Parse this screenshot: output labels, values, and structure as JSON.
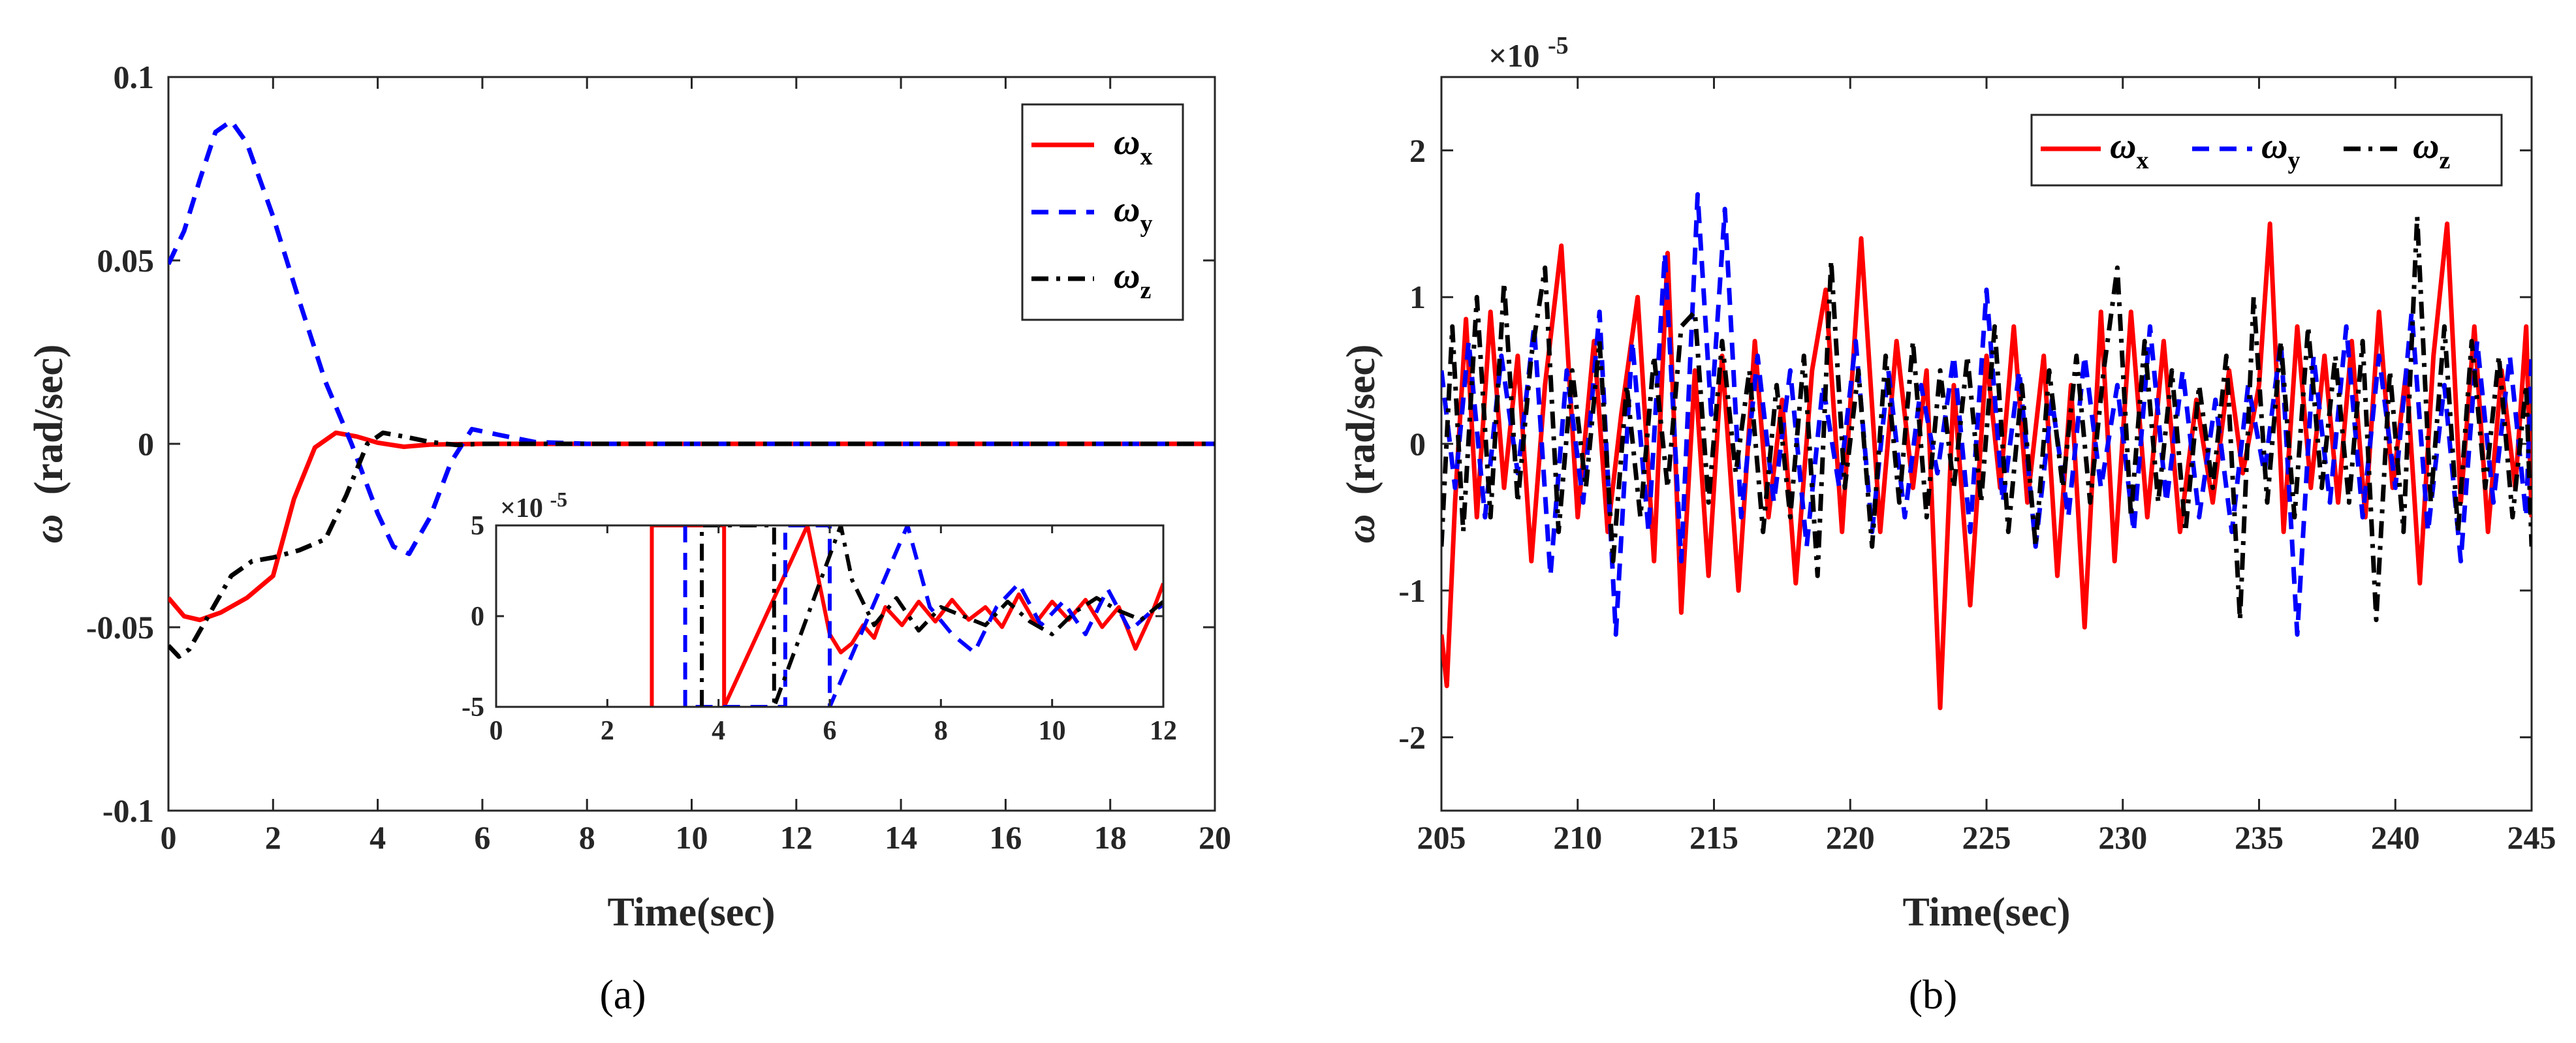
{
  "chart_data": [
    {
      "type": "line",
      "panel_caption": "(a)",
      "xlabel": "Time(sec)",
      "ylabel_symbol": "ω",
      "ylabel_unit": "(rad/sec)",
      "xlim": [
        0,
        20
      ],
      "ylim": [
        -0.1,
        0.1
      ],
      "xticks": [
        0,
        2,
        4,
        6,
        8,
        10,
        12,
        14,
        16,
        18,
        20
      ],
      "xtick_labels": [
        "0",
        "2",
        "4",
        "6",
        "8",
        "10",
        "12",
        "14",
        "16",
        "18",
        "20"
      ],
      "yticks": [
        -0.1,
        -0.05,
        0,
        0.05,
        0.1
      ],
      "ytick_labels": [
        "-0.1",
        "-0.05",
        "0",
        "0.05",
        "0.1"
      ],
      "legend_position": "top-right",
      "series": [
        {
          "name": "ωx",
          "symbol": "ω",
          "sub": "x",
          "color": "#ff0000",
          "style": "solid",
          "x": [
            0,
            0.3,
            0.6,
            1.0,
            1.5,
            2.0,
            2.4,
            2.8,
            3.2,
            3.6,
            4.0,
            4.5,
            5.0,
            6.0,
            8.0,
            12.0,
            20.0
          ],
          "y": [
            -0.042,
            -0.047,
            -0.048,
            -0.046,
            -0.042,
            -0.036,
            -0.015,
            -0.001,
            0.003,
            0.002,
            0.0003,
            -0.0008,
            -0.0002,
            0,
            0,
            0,
            0
          ]
        },
        {
          "name": "ωy",
          "symbol": "ω",
          "sub": "y",
          "color": "#0000ff",
          "style": "dashed",
          "x": [
            0,
            0.3,
            0.6,
            0.9,
            1.2,
            1.5,
            2.0,
            2.5,
            3.0,
            3.5,
            4.0,
            4.3,
            4.6,
            5.0,
            5.4,
            5.8,
            6.3,
            7.0,
            8.0,
            20.0
          ],
          "y": [
            0.049,
            0.058,
            0.072,
            0.085,
            0.088,
            0.082,
            0.062,
            0.039,
            0.017,
            0.0,
            -0.019,
            -0.028,
            -0.03,
            -0.02,
            -0.005,
            0.004,
            0.0025,
            0.0005,
            0,
            0
          ]
        },
        {
          "name": "ωz",
          "symbol": "ω",
          "sub": "z",
          "color": "#000000",
          "style": "dashdot",
          "x": [
            0,
            0.2,
            0.4,
            0.8,
            1.2,
            1.6,
            2.0,
            2.5,
            3.0,
            3.4,
            3.8,
            4.1,
            4.5,
            5.0,
            5.5,
            6.0,
            7.0,
            20.0
          ],
          "y": [
            -0.055,
            -0.058,
            -0.056,
            -0.046,
            -0.036,
            -0.032,
            -0.031,
            -0.029,
            -0.026,
            -0.014,
            0.0,
            0.003,
            0.002,
            0.0005,
            -0.0003,
            0,
            0,
            0
          ]
        }
      ],
      "inset": {
        "multiplier": "×10",
        "multiplier_exp": "-5",
        "xlim": [
          0,
          12
        ],
        "ylim": [
          -5,
          5
        ],
        "xticks": [
          0,
          2,
          4,
          6,
          8,
          10,
          12
        ],
        "xtick_labels": [
          "0",
          "2",
          "4",
          "6",
          "8",
          "10",
          "12"
        ],
        "yticks": [
          -5,
          0,
          5
        ],
        "ytick_labels": [
          "-5",
          "0",
          "5"
        ],
        "series": [
          {
            "color": "#ff0000",
            "style": "solid",
            "x": [
              2.8,
              2.8,
              4.1,
              4.1,
              5.6,
              5.8,
              6.0,
              6.2,
              6.4,
              6.6,
              6.8,
              7.0,
              7.3,
              7.6,
              7.9,
              8.2,
              8.5,
              8.8,
              9.1,
              9.4,
              9.7,
              10.0,
              10.3,
              10.6,
              10.9,
              11.2,
              11.5,
              11.8,
              12.0
            ],
            "y": [
              -5,
              5,
              5,
              -5,
              5,
              2.0,
              -1.0,
              -2.0,
              -1.5,
              -0.5,
              -1.2,
              0.5,
              -0.5,
              0.8,
              -0.3,
              0.9,
              -0.2,
              0.5,
              -0.6,
              1.2,
              -0.4,
              0.8,
              -0.2,
              0.9,
              -0.6,
              0.5,
              -1.8,
              0.2,
              1.8
            ]
          },
          {
            "color": "#0000ff",
            "style": "dashed",
            "x": [
              3.4,
              3.4,
              5.2,
              5.2,
              6.0,
              6.0,
              7.4,
              7.8,
              8.2,
              8.6,
              9.0,
              9.4,
              9.8,
              10.2,
              10.6,
              11.0,
              11.4,
              11.8,
              12.0
            ],
            "y": [
              5,
              -5,
              -5,
              5,
              5,
              -5,
              5,
              0.5,
              -1.0,
              -2.0,
              0.5,
              1.8,
              -0.5,
              0.8,
              -1.0,
              1.5,
              -0.8,
              0.3,
              0.6
            ]
          },
          {
            "color": "#000000",
            "style": "dashdot",
            "x": [
              3.7,
              3.7,
              5.0,
              5.0,
              6.2,
              6.4,
              6.8,
              7.2,
              7.6,
              8.0,
              8.4,
              8.8,
              9.2,
              9.6,
              10.0,
              10.4,
              10.8,
              11.2,
              11.6,
              12.0
            ],
            "y": [
              -5,
              5,
              5,
              -5,
              5,
              2.0,
              -0.5,
              1.0,
              -0.8,
              0.5,
              0.0,
              -0.5,
              0.8,
              -0.3,
              -1.0,
              0.2,
              1.0,
              0.3,
              -0.2,
              0.8
            ]
          }
        ]
      }
    },
    {
      "type": "line",
      "panel_caption": "(b)",
      "xlabel": "Time(sec)",
      "ylabel_symbol": "ω",
      "ylabel_unit": "(rad/sec)",
      "multiplier": "×10",
      "multiplier_exp": "-5",
      "xlim": [
        205,
        245
      ],
      "ylim": [
        -2.5,
        2.5
      ],
      "xticks": [
        205,
        210,
        215,
        220,
        225,
        230,
        235,
        240,
        245
      ],
      "xtick_labels": [
        "205",
        "210",
        "215",
        "220",
        "225",
        "230",
        "235",
        "240",
        "245"
      ],
      "yticks": [
        -2,
        -1,
        0,
        1,
        2
      ],
      "ytick_labels": [
        "-2",
        "-1",
        "0",
        "1",
        "2"
      ],
      "legend_position": "top-right",
      "series": [
        {
          "name": "ωx",
          "symbol": "ω",
          "sub": "x",
          "color": "#ff0000",
          "style": "solid",
          "x": [
            205,
            205.2,
            205.5,
            205.9,
            206.3,
            206.8,
            207.3,
            207.8,
            208.3,
            208.8,
            209.4,
            210.0,
            210.6,
            211.1,
            211.6,
            212.2,
            212.8,
            213.3,
            213.8,
            214.3,
            214.8,
            215.3,
            215.9,
            216.5,
            217.0,
            217.5,
            218.0,
            218.6,
            219.1,
            219.7,
            220.4,
            221.1,
            221.7,
            222.3,
            222.8,
            223.3,
            223.8,
            224.4,
            225.0,
            225.5,
            226.0,
            226.5,
            227.1,
            227.6,
            228.1,
            228.6,
            229.2,
            229.7,
            230.3,
            230.9,
            231.5,
            232.1,
            232.7,
            233.3,
            233.9,
            234.4,
            235.0,
            235.4,
            235.9,
            236.4,
            236.9,
            237.4,
            237.9,
            238.4,
            238.9,
            239.4,
            239.9,
            240.4,
            240.9,
            241.4,
            241.9,
            242.4,
            242.9,
            243.4,
            243.9,
            244.4,
            244.8,
            245.0
          ],
          "y": [
            -1.3,
            -1.65,
            -0.4,
            0.85,
            -0.5,
            0.9,
            -0.3,
            0.6,
            -0.8,
            0.4,
            1.35,
            -0.5,
            0.7,
            -0.6,
            0.2,
            1.0,
            -0.8,
            1.3,
            -1.15,
            0.5,
            -0.9,
            0.6,
            -1.0,
            0.7,
            -0.5,
            0.3,
            -0.95,
            0.5,
            1.05,
            -0.6,
            1.4,
            -0.6,
            0.7,
            -0.3,
            0.5,
            -1.8,
            0.4,
            -1.1,
            0.6,
            -0.3,
            0.8,
            -0.4,
            0.6,
            -0.9,
            0.4,
            -1.25,
            0.9,
            -0.8,
            0.9,
            -0.5,
            0.7,
            -0.6,
            0.3,
            -0.4,
            0.5,
            -0.2,
            0.4,
            1.5,
            -0.6,
            0.8,
            -0.3,
            0.6,
            -0.4,
            0.7,
            -0.5,
            0.9,
            -0.3,
            0.5,
            -0.95,
            0.6,
            1.5,
            -0.4,
            0.8,
            -0.6,
            0.5,
            -0.3,
            0.8,
            -0.5
          ]
        },
        {
          "name": "ωy",
          "symbol": "ω",
          "sub": "y",
          "color": "#0000ff",
          "style": "dashed",
          "x": [
            205,
            205.5,
            206.0,
            206.6,
            207.2,
            207.8,
            208.4,
            209.0,
            209.6,
            210.2,
            210.8,
            211.4,
            212.0,
            212.6,
            213.2,
            213.8,
            214.4,
            214.9,
            215.4,
            216.0,
            216.6,
            217.2,
            217.8,
            218.4,
            219.0,
            219.6,
            220.2,
            220.8,
            221.4,
            222.0,
            222.6,
            223.2,
            223.8,
            224.4,
            225.0,
            225.6,
            226.2,
            226.8,
            227.4,
            228.0,
            228.6,
            229.2,
            229.8,
            230.4,
            231.0,
            231.6,
            232.2,
            232.8,
            233.4,
            234.0,
            234.6,
            235.2,
            235.8,
            236.4,
            237.0,
            237.6,
            238.2,
            238.8,
            239.4,
            240.0,
            240.6,
            241.2,
            241.8,
            242.4,
            243.0,
            243.6,
            244.2,
            244.8,
            245.0
          ],
          "y": [
            0.5,
            -0.3,
            0.7,
            -0.5,
            0.6,
            -0.2,
            0.8,
            -0.9,
            0.5,
            -0.4,
            0.9,
            -1.3,
            0.7,
            -0.6,
            1.3,
            -0.8,
            1.7,
            0.2,
            1.6,
            -0.5,
            0.6,
            -0.4,
            0.5,
            -0.7,
            0.4,
            -0.3,
            0.7,
            -0.6,
            0.5,
            -0.5,
            0.4,
            -0.2,
            0.6,
            -0.6,
            1.05,
            -0.4,
            0.5,
            -0.7,
            0.3,
            -0.5,
            0.6,
            -0.3,
            0.4,
            -0.6,
            0.8,
            -0.4,
            0.5,
            -0.5,
            0.3,
            -0.6,
            0.4,
            -0.2,
            0.7,
            -1.3,
            0.6,
            -0.4,
            0.8,
            -0.5,
            0.6,
            -0.3,
            0.9,
            -0.6,
            0.4,
            -0.8,
            0.7,
            -0.4,
            0.6,
            -0.5,
            0.6
          ]
        },
        {
          "name": "ωz",
          "symbol": "ω",
          "sub": "z",
          "color": "#000000",
          "style": "dashdot",
          "x": [
            205,
            205.4,
            205.8,
            206.3,
            206.8,
            207.3,
            207.8,
            208.3,
            208.8,
            209.3,
            209.8,
            210.3,
            210.8,
            211.3,
            211.8,
            212.3,
            212.8,
            213.3,
            213.8,
            214.3,
            214.8,
            215.3,
            215.8,
            216.3,
            216.8,
            217.3,
            217.8,
            218.3,
            218.8,
            219.3,
            219.8,
            220.3,
            220.8,
            221.3,
            221.8,
            222.3,
            222.8,
            223.3,
            223.8,
            224.3,
            224.8,
            225.3,
            225.8,
            226.3,
            226.8,
            227.3,
            227.8,
            228.3,
            228.8,
            229.3,
            229.8,
            230.3,
            230.8,
            231.3,
            231.8,
            232.3,
            232.8,
            233.3,
            233.8,
            234.3,
            234.8,
            235.3,
            235.8,
            236.3,
            236.8,
            237.3,
            237.8,
            238.3,
            238.8,
            239.3,
            239.8,
            240.3,
            240.8,
            241.3,
            241.8,
            242.3,
            242.8,
            243.3,
            243.8,
            244.3,
            244.8,
            245.0
          ],
          "y": [
            -0.7,
            0.8,
            -0.6,
            1.0,
            -0.5,
            1.1,
            -0.4,
            0.6,
            1.2,
            -0.6,
            0.5,
            -0.3,
            0.7,
            -0.8,
            0.4,
            -0.5,
            0.6,
            -0.3,
            0.8,
            0.9,
            -0.4,
            0.7,
            -0.2,
            0.5,
            -0.6,
            0.4,
            -0.5,
            0.6,
            -0.9,
            1.25,
            -0.3,
            0.5,
            -0.7,
            0.6,
            -0.4,
            0.7,
            -0.5,
            0.5,
            -0.3,
            0.6,
            -0.4,
            0.8,
            -0.6,
            0.4,
            -0.7,
            0.5,
            -0.3,
            0.6,
            -0.4,
            0.5,
            1.2,
            -0.5,
            0.7,
            -0.4,
            0.5,
            -0.6,
            0.4,
            -0.3,
            0.6,
            -1.2,
            1.0,
            -0.4,
            0.7,
            -0.5,
            0.8,
            -0.3,
            0.6,
            -0.4,
            0.7,
            -1.2,
            0.5,
            -0.6,
            1.55,
            -0.4,
            0.8,
            -0.6,
            0.7,
            -0.3,
            0.6,
            -0.5,
            0.4,
            -0.7
          ]
        }
      ]
    }
  ]
}
